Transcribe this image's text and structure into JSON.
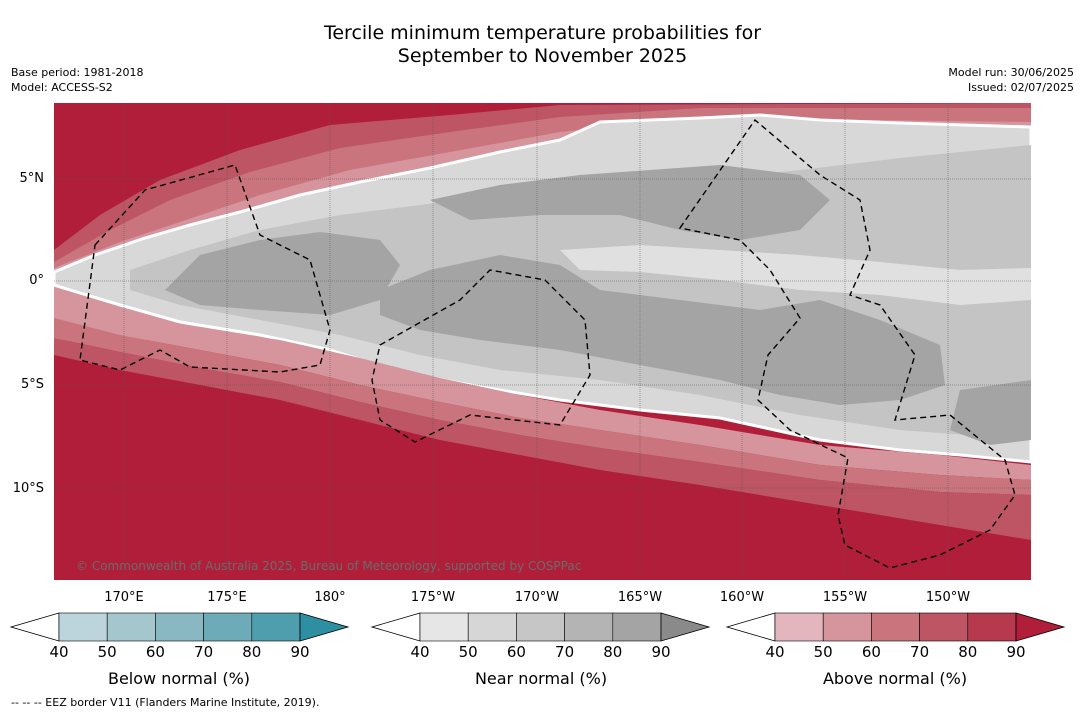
{
  "title_line1": "Tercile minimum temperature probabilities for",
  "title_line2": "September to November 2025",
  "base_period": "Base period: 1981-2018",
  "model": "Model: ACCESS-S2",
  "model_run": "Model run: 30/06/2025",
  "issued": "Issued: 02/07/2025",
  "credit": "© Commonwealth of Australia 2025, Bureau of Meteorology, supported by COSPPac",
  "footnote": "--  --  -- EEZ border V11 (Flanders Marine Institute, 2019).",
  "lat_ticks": [
    "5°N",
    "0°",
    "5°S",
    "10°S"
  ],
  "lon_ticks": [
    "170°E",
    "175°E",
    "180°",
    "175°W",
    "170°W",
    "165°W",
    "160°W",
    "155°W",
    "150°W"
  ],
  "colorbars": [
    {
      "label": "Below normal (%)",
      "ticks": [
        "40",
        "50",
        "60",
        "70",
        "80",
        "90"
      ],
      "colors": [
        "#ffffff",
        "#bcd4db",
        "#a4c6cd",
        "#8ab8c2",
        "#6eabb8",
        "#4f9eae",
        "#2e8fa3"
      ]
    },
    {
      "label": "Near normal (%)",
      "ticks": [
        "40",
        "50",
        "60",
        "70",
        "80",
        "90"
      ],
      "colors": [
        "#ffffff",
        "#e6e6e6",
        "#d6d6d6",
        "#c6c6c6",
        "#b4b4b4",
        "#a4a4a4",
        "#8a8a8a"
      ]
    },
    {
      "label": "Above normal (%)",
      "ticks": [
        "40",
        "50",
        "60",
        "70",
        "80",
        "90"
      ],
      "colors": [
        "#ffffff",
        "#e2b6bc",
        "#d6949c",
        "#ca747e",
        "#be5564",
        "#b6394d",
        "#b01e3a"
      ]
    }
  ]
}
